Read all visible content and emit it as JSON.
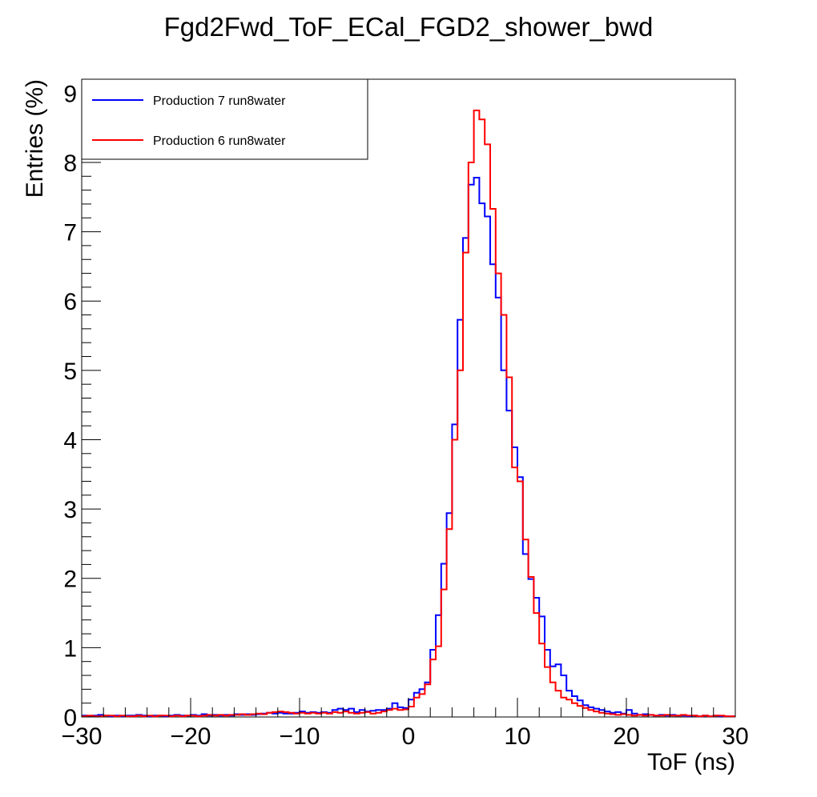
{
  "chart_data": {
    "type": "histogram",
    "title": "Fgd2Fwd_ToF_ECal_FGD2_shower_bwd",
    "xlabel": "ToF (ns)",
    "ylabel": "Entries (%)",
    "xlim": [
      -30,
      30
    ],
    "ylim": [
      0,
      9.2
    ],
    "x_ticks": [
      -30,
      -20,
      -10,
      0,
      10,
      20,
      30
    ],
    "x_tick_labels": [
      "−30",
      "−20",
      "−10",
      "0",
      "10",
      "20",
      "30"
    ],
    "y_ticks": [
      0,
      1,
      2,
      3,
      4,
      5,
      6,
      7,
      8,
      9
    ],
    "y_tick_labels": [
      "0",
      "1",
      "2",
      "3",
      "4",
      "5",
      "6",
      "7",
      "8",
      "9"
    ],
    "bin_width": 0.5,
    "grid": false,
    "legend_position": "top-left",
    "series": [
      {
        "name": "Production 7 run8water",
        "color": "#0000ff",
        "bins": [
          [
            -30,
            0.02
          ],
          [
            -29.5,
            0.01
          ],
          [
            -29,
            0.02
          ],
          [
            -28.5,
            0.03
          ],
          [
            -28,
            0.02
          ],
          [
            -27.5,
            0.01
          ],
          [
            -27,
            0.02
          ],
          [
            -26.5,
            0.01
          ],
          [
            -26,
            0.02
          ],
          [
            -25.5,
            0.02
          ],
          [
            -25,
            0.03
          ],
          [
            -24.5,
            0.02
          ],
          [
            -24,
            0.01
          ],
          [
            -23.5,
            0.02
          ],
          [
            -23,
            0.02
          ],
          [
            -22.5,
            0.01
          ],
          [
            -22,
            0.02
          ],
          [
            -21.5,
            0.03
          ],
          [
            -21,
            0.02
          ],
          [
            -20.5,
            0.02
          ],
          [
            -20,
            0.03
          ],
          [
            -19.5,
            0.02
          ],
          [
            -19,
            0.04
          ],
          [
            -18.5,
            0.02
          ],
          [
            -18,
            0.03
          ],
          [
            -17.5,
            0.02
          ],
          [
            -17,
            0.03
          ],
          [
            -16.5,
            0.02
          ],
          [
            -16,
            0.04
          ],
          [
            -15.5,
            0.03
          ],
          [
            -15,
            0.04
          ],
          [
            -14.5,
            0.03
          ],
          [
            -14,
            0.04
          ],
          [
            -13.5,
            0.05
          ],
          [
            -13,
            0.06
          ],
          [
            -12.5,
            0.05
          ],
          [
            -12,
            0.06
          ],
          [
            -11.5,
            0.05
          ],
          [
            -11,
            0.05
          ],
          [
            -10.5,
            0.06
          ],
          [
            -10,
            0.08
          ],
          [
            -9.5,
            0.06
          ],
          [
            -9,
            0.07
          ],
          [
            -8.5,
            0.06
          ],
          [
            -8,
            0.07
          ],
          [
            -7.5,
            0.06
          ],
          [
            -7,
            0.1
          ],
          [
            -6.5,
            0.12
          ],
          [
            -6,
            0.1
          ],
          [
            -5.5,
            0.12
          ],
          [
            -5,
            0.07
          ],
          [
            -4.5,
            0.1
          ],
          [
            -4,
            0.08
          ],
          [
            -3.5,
            0.09
          ],
          [
            -3,
            0.1
          ],
          [
            -2.5,
            0.1
          ],
          [
            -2,
            0.12
          ],
          [
            -1.5,
            0.2
          ],
          [
            -1,
            0.14
          ],
          [
            -0.5,
            0.13
          ],
          [
            0,
            0.25
          ],
          [
            0.5,
            0.35
          ],
          [
            1,
            0.4
          ],
          [
            1.5,
            0.5
          ],
          [
            2,
            0.97
          ],
          [
            2.5,
            1.47
          ],
          [
            3,
            2.21
          ],
          [
            3.5,
            2.94
          ],
          [
            4,
            4.22
          ],
          [
            4.5,
            5.73
          ],
          [
            5,
            6.91
          ],
          [
            5.5,
            7.68
          ],
          [
            6,
            7.78
          ],
          [
            6.5,
            7.41
          ],
          [
            7,
            7.22
          ],
          [
            7.5,
            6.53
          ],
          [
            8,
            6.05
          ],
          [
            8.5,
            5.0
          ],
          [
            9,
            4.42
          ],
          [
            9.5,
            3.89
          ],
          [
            10,
            3.46
          ],
          [
            10.5,
            2.35
          ],
          [
            11,
            1.99
          ],
          [
            11.5,
            1.72
          ],
          [
            12,
            1.45
          ],
          [
            12.5,
            0.97
          ],
          [
            13,
            0.73
          ],
          [
            13.5,
            0.76
          ],
          [
            14,
            0.6
          ],
          [
            14.5,
            0.38
          ],
          [
            15,
            0.3
          ],
          [
            15.5,
            0.24
          ],
          [
            16,
            0.17
          ],
          [
            16.5,
            0.14
          ],
          [
            17,
            0.12
          ],
          [
            17.5,
            0.1
          ],
          [
            18,
            0.08
          ],
          [
            18.5,
            0.06
          ],
          [
            19,
            0.07
          ],
          [
            19.5,
            0.05
          ],
          [
            20,
            0.1
          ],
          [
            20.5,
            0.05
          ],
          [
            21,
            0.03
          ],
          [
            21.5,
            0.04
          ],
          [
            22,
            0.03
          ],
          [
            22.5,
            0.02
          ],
          [
            23,
            0.03
          ],
          [
            23.5,
            0.02
          ],
          [
            24,
            0.03
          ],
          [
            24.5,
            0.02
          ],
          [
            25,
            0.02
          ],
          [
            25.5,
            0.01
          ],
          [
            26,
            0.02
          ],
          [
            26.5,
            0.01
          ],
          [
            27,
            0.02
          ],
          [
            27.5,
            0.01
          ],
          [
            28,
            0.02
          ],
          [
            28.5,
            0.01
          ],
          [
            29,
            0.01
          ],
          [
            29.5,
            0.01
          ]
        ]
      },
      {
        "name": "Production 6 run8water",
        "color": "#ff0000",
        "bins": [
          [
            -30,
            0.01
          ],
          [
            -29.5,
            0.02
          ],
          [
            -29,
            0.01
          ],
          [
            -28.5,
            0.01
          ],
          [
            -28,
            0.02
          ],
          [
            -27.5,
            0.02
          ],
          [
            -27,
            0.01
          ],
          [
            -26.5,
            0.02
          ],
          [
            -26,
            0.01
          ],
          [
            -25.5,
            0.01
          ],
          [
            -25,
            0.02
          ],
          [
            -24.5,
            0.01
          ],
          [
            -24,
            0.02
          ],
          [
            -23.5,
            0.01
          ],
          [
            -23,
            0.02
          ],
          [
            -22.5,
            0.02
          ],
          [
            -22,
            0.01
          ],
          [
            -21.5,
            0.02
          ],
          [
            -21,
            0.01
          ],
          [
            -20.5,
            0.02
          ],
          [
            -20,
            0.02
          ],
          [
            -19.5,
            0.01
          ],
          [
            -19,
            0.02
          ],
          [
            -18.5,
            0.03
          ],
          [
            -18,
            0.02
          ],
          [
            -17.5,
            0.03
          ],
          [
            -17,
            0.02
          ],
          [
            -16.5,
            0.03
          ],
          [
            -16,
            0.03
          ],
          [
            -15.5,
            0.04
          ],
          [
            -15,
            0.03
          ],
          [
            -14.5,
            0.04
          ],
          [
            -14,
            0.05
          ],
          [
            -13.5,
            0.04
          ],
          [
            -13,
            0.06
          ],
          [
            -12.5,
            0.07
          ],
          [
            -12,
            0.08
          ],
          [
            -11.5,
            0.07
          ],
          [
            -11,
            0.06
          ],
          [
            -10.5,
            0.05
          ],
          [
            -10,
            0.06
          ],
          [
            -9.5,
            0.05
          ],
          [
            -9,
            0.06
          ],
          [
            -8.5,
            0.05
          ],
          [
            -8,
            0.06
          ],
          [
            -7.5,
            0.05
          ],
          [
            -7,
            0.07
          ],
          [
            -6.5,
            0.06
          ],
          [
            -6,
            0.08
          ],
          [
            -5.5,
            0.06
          ],
          [
            -5,
            0.05
          ],
          [
            -4.5,
            0.06
          ],
          [
            -4,
            0.07
          ],
          [
            -3.5,
            0.05
          ],
          [
            -3,
            0.06
          ],
          [
            -2.5,
            0.08
          ],
          [
            -2,
            0.1
          ],
          [
            -1.5,
            0.12
          ],
          [
            -1,
            0.1
          ],
          [
            -0.5,
            0.11
          ],
          [
            0,
            0.15
          ],
          [
            0.5,
            0.28
          ],
          [
            1,
            0.33
          ],
          [
            1.5,
            0.47
          ],
          [
            2,
            0.83
          ],
          [
            2.5,
            1.02
          ],
          [
            3,
            1.84
          ],
          [
            3.5,
            2.71
          ],
          [
            4,
            4.0
          ],
          [
            4.5,
            5.0
          ],
          [
            5,
            6.7
          ],
          [
            5.5,
            8.0
          ],
          [
            6,
            8.75
          ],
          [
            6.5,
            8.62
          ],
          [
            7,
            8.26
          ],
          [
            7.5,
            7.33
          ],
          [
            8,
            6.4
          ],
          [
            8.5,
            5.8
          ],
          [
            9,
            4.9
          ],
          [
            9.5,
            3.6
          ],
          [
            10,
            3.4
          ],
          [
            10.5,
            2.56
          ],
          [
            11,
            2.02
          ],
          [
            11.5,
            1.5
          ],
          [
            12,
            1.06
          ],
          [
            12.5,
            0.72
          ],
          [
            13,
            0.5
          ],
          [
            13.5,
            0.38
          ],
          [
            14,
            0.28
          ],
          [
            14.5,
            0.25
          ],
          [
            15,
            0.2
          ],
          [
            15.5,
            0.16
          ],
          [
            16,
            0.13
          ],
          [
            16.5,
            0.1
          ],
          [
            17,
            0.08
          ],
          [
            17.5,
            0.06
          ],
          [
            18,
            0.05
          ],
          [
            18.5,
            0.04
          ],
          [
            19,
            0.03
          ],
          [
            19.5,
            0.04
          ],
          [
            20,
            0.03
          ],
          [
            20.5,
            0.02
          ],
          [
            21,
            0.03
          ],
          [
            21.5,
            0.02
          ],
          [
            22,
            0.03
          ],
          [
            22.5,
            0.02
          ],
          [
            23,
            0.02
          ],
          [
            23.5,
            0.03
          ],
          [
            24,
            0.02
          ],
          [
            24.5,
            0.02
          ],
          [
            25,
            0.03
          ],
          [
            25.5,
            0.02
          ],
          [
            26,
            0.02
          ],
          [
            26.5,
            0.01
          ],
          [
            27,
            0.02
          ],
          [
            27.5,
            0.01
          ],
          [
            28,
            0.02
          ],
          [
            28.5,
            0.02
          ],
          [
            29,
            0.01
          ],
          [
            29.5,
            0.01
          ]
        ]
      }
    ]
  }
}
